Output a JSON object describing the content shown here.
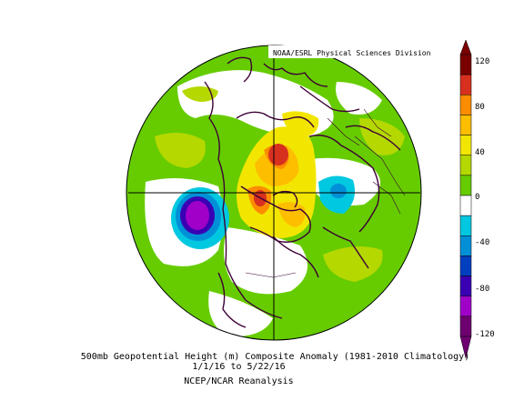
{
  "map": {
    "credit": "NOAA/ESRL Physical Sciences Division",
    "caption_line1": "500mb Geopotential Height (m) Composite Anomaly (1981-2010 Climatology)",
    "caption_line2": "1/1/16  to 5/22/16",
    "caption_line3": "NCEP/NCAR Reanalysis",
    "projection": "polar-stereographic-north",
    "colorbar": {
      "ticks": [
        "120",
        "80",
        "40",
        "0",
        "-40",
        "-80",
        "-120"
      ],
      "colors": [
        "#7a0000",
        "#d7301f",
        "#fc8d00",
        "#fdbe00",
        "#f2e600",
        "#b4d800",
        "#66cc00",
        "#ffffff",
        "#00c8e0",
        "#0090d8",
        "#0040c0",
        "#3a00b4",
        "#a000c8",
        "#6e0070"
      ]
    },
    "anomalies": [
      {
        "label": "negative anomaly over North Pacific",
        "value": -120
      },
      {
        "label": "positive anomaly over Arctic",
        "value": 120
      },
      {
        "label": "positive anomaly over Northern Canada",
        "value": 80
      },
      {
        "label": "negative anomaly over Siberia",
        "value": -40
      }
    ]
  }
}
